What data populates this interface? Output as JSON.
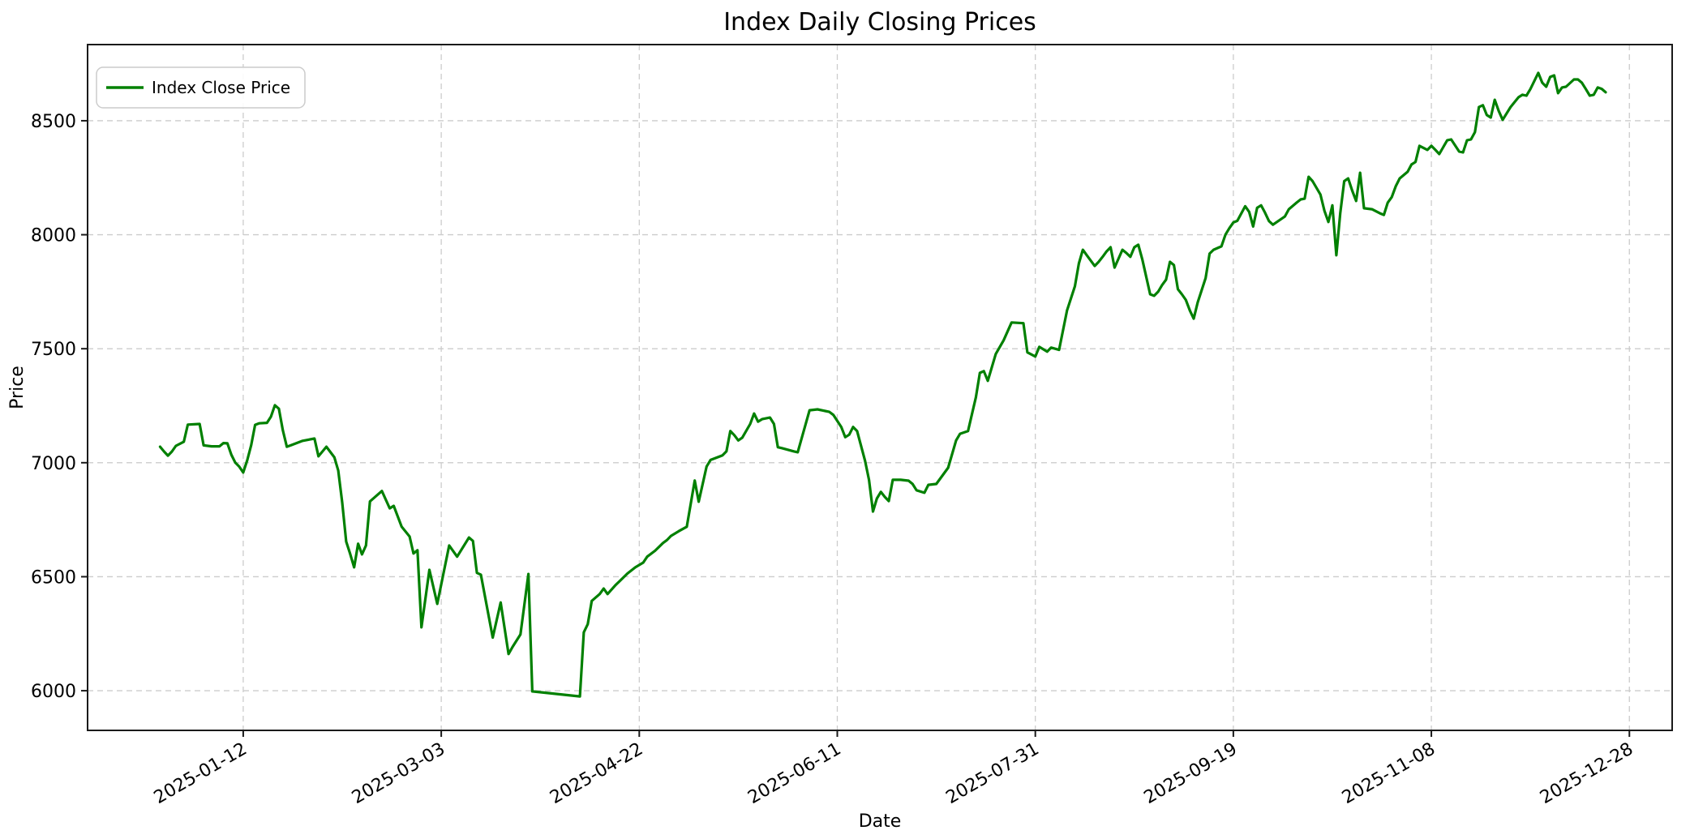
{
  "chart_data": {
    "type": "line",
    "title": "Index Daily Closing Prices",
    "xlabel": "Date",
    "ylabel": "Price",
    "legend": [
      "Index Close Price"
    ],
    "legend_position": "upper left",
    "grid": true,
    "grid_style": "dashed",
    "colors": {
      "line": "#008000",
      "grid": "#cccccc",
      "spine": "#1a1a1a",
      "text": "#000000",
      "legend_border": "#cccccc",
      "legend_bg": "#ffffff"
    },
    "y_ticks": [
      6000,
      6500,
      7000,
      7500,
      8000,
      8500
    ],
    "ylim": [
      5826,
      8834
    ],
    "x_ticks": [
      {
        "day": 21,
        "label": "2025-01-12"
      },
      {
        "day": 71,
        "label": "2025-03-03"
      },
      {
        "day": 121,
        "label": "2025-04-22"
      },
      {
        "day": 171,
        "label": "2025-06-11"
      },
      {
        "day": 221,
        "label": "2025-07-31"
      },
      {
        "day": 271,
        "label": "2025-09-19"
      },
      {
        "day": 321,
        "label": "2025-11-08"
      },
      {
        "day": 371,
        "label": "2025-12-28"
      }
    ],
    "x_domain_days": [
      -18.3,
      381.8
    ],
    "x_tick_label_rotation_deg": 30,
    "series": [
      {
        "name": "Index Close Price",
        "x_unit": "day offset of daily sample (day 21 = 2025-01-12, 1 day per unit)",
        "points": [
          [
            0,
            7070
          ],
          [
            1,
            7049
          ],
          [
            2,
            7031
          ],
          [
            3,
            7049
          ],
          [
            4,
            7074
          ],
          [
            6,
            7092
          ],
          [
            7,
            7167
          ],
          [
            10,
            7170
          ],
          [
            11,
            7076
          ],
          [
            13,
            7072
          ],
          [
            15,
            7072
          ],
          [
            16,
            7086
          ],
          [
            17,
            7085
          ],
          [
            18,
            7035
          ],
          [
            19,
            7000
          ],
          [
            20,
            6983
          ],
          [
            21,
            6957
          ],
          [
            22,
            7010
          ],
          [
            23,
            7076
          ],
          [
            24,
            7166
          ],
          [
            25,
            7173
          ],
          [
            27,
            7175
          ],
          [
            28,
            7202
          ],
          [
            29,
            7252
          ],
          [
            30,
            7237
          ],
          [
            31,
            7142
          ],
          [
            32,
            7070
          ],
          [
            33,
            7076
          ],
          [
            36,
            7096
          ],
          [
            39,
            7106
          ],
          [
            40,
            7028
          ],
          [
            42,
            7070
          ],
          [
            44,
            7024
          ],
          [
            45,
            6966
          ],
          [
            46,
            6825
          ],
          [
            47,
            6654
          ],
          [
            48,
            6600
          ],
          [
            49,
            6541
          ],
          [
            50,
            6645
          ],
          [
            51,
            6598
          ],
          [
            52,
            6637
          ],
          [
            53,
            6830
          ],
          [
            56,
            6876
          ],
          [
            58,
            6800
          ],
          [
            59,
            6811
          ],
          [
            61,
            6719
          ],
          [
            63,
            6676
          ],
          [
            64,
            6602
          ],
          [
            65,
            6616
          ],
          [
            66,
            6278
          ],
          [
            68,
            6530
          ],
          [
            70,
            6381
          ],
          [
            73,
            6637
          ],
          [
            75,
            6588
          ],
          [
            78,
            6672
          ],
          [
            79,
            6657
          ],
          [
            80,
            6517
          ],
          [
            81,
            6509
          ],
          [
            84,
            6233
          ],
          [
            86,
            6387
          ],
          [
            88,
            6161
          ],
          [
            89,
            6192
          ],
          [
            91,
            6247
          ],
          [
            93,
            6512
          ],
          [
            94,
            5997
          ],
          [
            106,
            5975
          ],
          [
            107,
            6256
          ],
          [
            108,
            6292
          ],
          [
            109,
            6394
          ],
          [
            111,
            6424
          ],
          [
            112,
            6448
          ],
          [
            113,
            6424
          ],
          [
            115,
            6463
          ],
          [
            116,
            6480
          ],
          [
            118,
            6514
          ],
          [
            120,
            6541
          ],
          [
            122,
            6562
          ],
          [
            123,
            6588
          ],
          [
            125,
            6614
          ],
          [
            127,
            6648
          ],
          [
            128,
            6661
          ],
          [
            129,
            6679
          ],
          [
            131,
            6700
          ],
          [
            133,
            6719
          ],
          [
            135,
            6922
          ],
          [
            136,
            6829
          ],
          [
            138,
            6983
          ],
          [
            139,
            7012
          ],
          [
            142,
            7032
          ],
          [
            143,
            7050
          ],
          [
            144,
            7139
          ],
          [
            145,
            7121
          ],
          [
            146,
            7098
          ],
          [
            147,
            7110
          ],
          [
            149,
            7170
          ],
          [
            150,
            7216
          ],
          [
            151,
            7180
          ],
          [
            152,
            7191
          ],
          [
            154,
            7198
          ],
          [
            155,
            7170
          ],
          [
            156,
            7068
          ],
          [
            157,
            7064
          ],
          [
            160,
            7050
          ],
          [
            161,
            7046
          ],
          [
            164,
            7230
          ],
          [
            166,
            7234
          ],
          [
            169,
            7223
          ],
          [
            170,
            7210
          ],
          [
            172,
            7157
          ],
          [
            173,
            7112
          ],
          [
            174,
            7123
          ],
          [
            175,
            7157
          ],
          [
            176,
            7139
          ],
          [
            178,
            7009
          ],
          [
            179,
            6925
          ],
          [
            180,
            6786
          ],
          [
            181,
            6843
          ],
          [
            182,
            6872
          ],
          [
            183,
            6850
          ],
          [
            184,
            6832
          ],
          [
            185,
            6925
          ],
          [
            187,
            6925
          ],
          [
            189,
            6921
          ],
          [
            190,
            6907
          ],
          [
            191,
            6879
          ],
          [
            193,
            6868
          ],
          [
            194,
            6903
          ],
          [
            196,
            6907
          ],
          [
            199,
            6978
          ],
          [
            201,
            7098
          ],
          [
            202,
            7127
          ],
          [
            204,
            7139
          ],
          [
            206,
            7287
          ],
          [
            207,
            7394
          ],
          [
            208,
            7402
          ],
          [
            209,
            7359
          ],
          [
            211,
            7477
          ],
          [
            213,
            7537
          ],
          [
            215,
            7615
          ],
          [
            218,
            7612
          ],
          [
            219,
            7484
          ],
          [
            221,
            7466
          ],
          [
            222,
            7508
          ],
          [
            224,
            7487
          ],
          [
            225,
            7505
          ],
          [
            227,
            7495
          ],
          [
            229,
            7668
          ],
          [
            231,
            7774
          ],
          [
            232,
            7874
          ],
          [
            233,
            7934
          ],
          [
            234,
            7910
          ],
          [
            236,
            7863
          ],
          [
            237,
            7881
          ],
          [
            238,
            7903
          ],
          [
            239,
            7927
          ],
          [
            240,
            7945
          ],
          [
            241,
            7856
          ],
          [
            243,
            7934
          ],
          [
            244,
            7920
          ],
          [
            245,
            7903
          ],
          [
            246,
            7945
          ],
          [
            247,
            7956
          ],
          [
            248,
            7892
          ],
          [
            250,
            7739
          ],
          [
            251,
            7732
          ],
          [
            252,
            7750
          ],
          [
            253,
            7779
          ],
          [
            254,
            7803
          ],
          [
            255,
            7881
          ],
          [
            256,
            7867
          ],
          [
            257,
            7761
          ],
          [
            258,
            7739
          ],
          [
            259,
            7714
          ],
          [
            260,
            7668
          ],
          [
            261,
            7632
          ],
          [
            262,
            7703
          ],
          [
            264,
            7810
          ],
          [
            265,
            7917
          ],
          [
            266,
            7934
          ],
          [
            268,
            7949
          ],
          [
            269,
            8000
          ],
          [
            270,
            8029
          ],
          [
            271,
            8054
          ],
          [
            272,
            8061
          ],
          [
            274,
            8125
          ],
          [
            275,
            8100
          ],
          [
            276,
            8036
          ],
          [
            277,
            8118
          ],
          [
            278,
            8129
          ],
          [
            279,
            8097
          ],
          [
            280,
            8060
          ],
          [
            281,
            8044
          ],
          [
            284,
            8080
          ],
          [
            285,
            8112
          ],
          [
            287,
            8141
          ],
          [
            288,
            8155
          ],
          [
            289,
            8158
          ],
          [
            290,
            8254
          ],
          [
            291,
            8235
          ],
          [
            293,
            8176
          ],
          [
            294,
            8105
          ],
          [
            295,
            8056
          ],
          [
            296,
            8129
          ],
          [
            297,
            7910
          ],
          [
            298,
            8094
          ],
          [
            299,
            8235
          ],
          [
            300,
            8247
          ],
          [
            301,
            8194
          ],
          [
            302,
            8148
          ],
          [
            303,
            8272
          ],
          [
            304,
            8116
          ],
          [
            306,
            8112
          ],
          [
            308,
            8094
          ],
          [
            309,
            8087
          ],
          [
            310,
            8141
          ],
          [
            311,
            8165
          ],
          [
            312,
            8212
          ],
          [
            313,
            8247
          ],
          [
            315,
            8276
          ],
          [
            316,
            8308
          ],
          [
            317,
            8319
          ],
          [
            318,
            8390
          ],
          [
            320,
            8372
          ],
          [
            321,
            8390
          ],
          [
            322,
            8372
          ],
          [
            323,
            8354
          ],
          [
            325,
            8414
          ],
          [
            326,
            8418
          ],
          [
            328,
            8365
          ],
          [
            329,
            8361
          ],
          [
            330,
            8414
          ],
          [
            331,
            8418
          ],
          [
            332,
            8450
          ],
          [
            333,
            8560
          ],
          [
            334,
            8568
          ],
          [
            335,
            8525
          ],
          [
            336,
            8514
          ],
          [
            337,
            8592
          ],
          [
            338,
            8543
          ],
          [
            339,
            8504
          ],
          [
            341,
            8560
          ],
          [
            343,
            8603
          ],
          [
            344,
            8614
          ],
          [
            345,
            8610
          ],
          [
            346,
            8639
          ],
          [
            348,
            8710
          ],
          [
            349,
            8667
          ],
          [
            350,
            8649
          ],
          [
            351,
            8692
          ],
          [
            352,
            8699
          ],
          [
            353,
            8621
          ],
          [
            354,
            8646
          ],
          [
            355,
            8649
          ],
          [
            357,
            8681
          ],
          [
            358,
            8681
          ],
          [
            359,
            8667
          ],
          [
            360,
            8639
          ],
          [
            361,
            8610
          ],
          [
            362,
            8614
          ],
          [
            363,
            8646
          ],
          [
            364,
            8640
          ],
          [
            365,
            8625
          ]
        ]
      }
    ]
  }
}
